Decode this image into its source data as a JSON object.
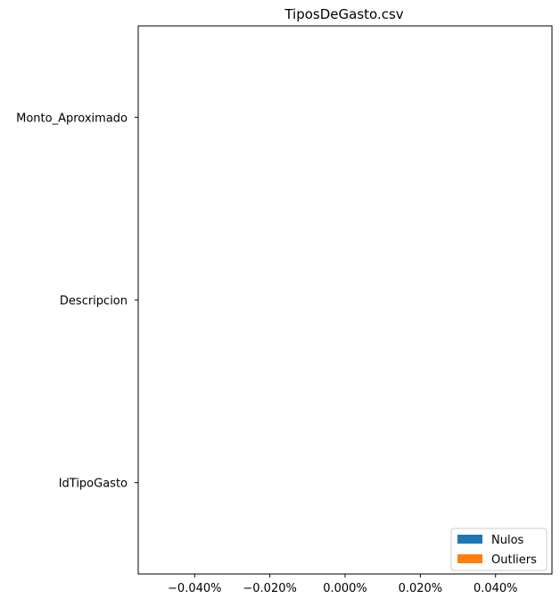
{
  "chart_data": {
    "type": "bar",
    "orientation": "horizontal",
    "title": "TiposDeGasto.csv",
    "xlabel": "",
    "ylabel": "",
    "categories": [
      "IdTipoGasto",
      "Descripcion",
      "Monto_Aproximado"
    ],
    "series": [
      {
        "name": "Nulos",
        "values": [
          0,
          0,
          0
        ],
        "color": "#1f77b4"
      },
      {
        "name": "Outliers",
        "values": [
          0,
          0,
          0
        ],
        "color": "#ff7f0e"
      }
    ],
    "xlim": [
      -0.055,
      0.055
    ],
    "x_ticks": [
      -0.04,
      -0.02,
      0.0,
      0.02,
      0.04
    ],
    "x_tick_labels": [
      "−0.040%",
      "−0.020%",
      "0.000%",
      "0.020%",
      "0.040%"
    ],
    "grid": false,
    "legend_position": "lower-right"
  }
}
